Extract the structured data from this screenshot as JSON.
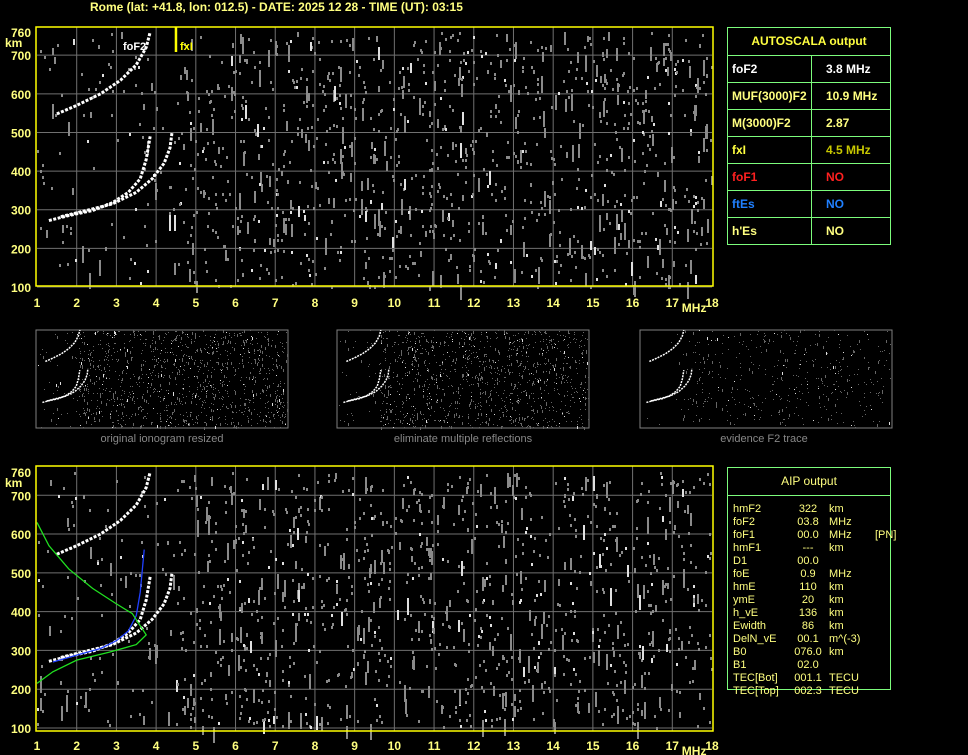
{
  "header": {
    "title": "Rome (lat: +41.8, lon: 012.5) - DATE: 2025 12 28 - TIME (UT): 03:15"
  },
  "colors": {
    "frame": "#ffff00",
    "text": "#ffff80",
    "table_border": "#7cfc7c",
    "grid": "#808080",
    "trace": "#ffffff",
    "foF1": "#ff2020",
    "ftEs": "#2080ff",
    "profile_green": "#20e020",
    "profile_blue": "#2040ff"
  },
  "chart_data": [
    {
      "type": "scatter",
      "title": "",
      "xlabel": "MHz",
      "ylabel": "km",
      "xlim": [
        1,
        18
      ],
      "ylim": [
        100,
        760
      ],
      "x_ticks": [
        "1",
        "2",
        "3",
        "4",
        "5",
        "6",
        "7",
        "8",
        "9",
        "10",
        "11",
        "12",
        "13",
        "14",
        "15",
        "16",
        "17",
        "18"
      ],
      "y_ticks": [
        "100",
        "200",
        "300",
        "400",
        "500",
        "600",
        "700",
        "760"
      ],
      "grid": true,
      "annotations": [
        {
          "label": "foF2",
          "x": 3.8
        },
        {
          "label": "fxI",
          "x": 4.5
        }
      ],
      "series": [
        {
          "x": [
            1.3,
            1.8,
            2.4,
            2.9,
            3.3,
            3.6,
            3.75,
            3.85
          ],
          "y": [
            272,
            285,
            298,
            318,
            345,
            380,
            430,
            490
          ]
        },
        {
          "x": [
            1.6,
            2.2,
            2.9,
            3.5,
            3.9,
            4.2,
            4.35,
            4.4
          ],
          "y": [
            282,
            297,
            315,
            345,
            380,
            420,
            460,
            500
          ]
        },
        {
          "x": [
            1.5,
            2.0,
            2.6,
            3.1,
            3.5,
            3.75,
            3.85
          ],
          "y": [
            548,
            570,
            600,
            635,
            675,
            720,
            760
          ]
        }
      ]
    },
    {
      "type": "scatter",
      "title": "",
      "xlabel": "MHz",
      "ylabel": "km",
      "xlim": [
        1,
        18
      ],
      "ylim": [
        100,
        760
      ],
      "x_ticks": [
        "1",
        "2",
        "3",
        "4",
        "5",
        "6",
        "7",
        "8",
        "9",
        "10",
        "11",
        "12",
        "13",
        "14",
        "15",
        "16",
        "17",
        "18"
      ],
      "y_ticks": [
        "100",
        "200",
        "300",
        "400",
        "500",
        "600",
        "700",
        "760"
      ],
      "grid": true,
      "series": [
        {
          "x": [
            1.3,
            1.8,
            2.4,
            2.9,
            3.3,
            3.6,
            3.75,
            3.85
          ],
          "y": [
            272,
            285,
            298,
            318,
            345,
            380,
            430,
            490
          ]
        },
        {
          "x": [
            1.6,
            2.2,
            2.9,
            3.5,
            3.9,
            4.2,
            4.35,
            4.4
          ],
          "y": [
            282,
            297,
            315,
            345,
            380,
            420,
            460,
            500
          ]
        },
        {
          "x": [
            1.5,
            2.0,
            2.6,
            3.1,
            3.5,
            3.75,
            3.85
          ],
          "y": [
            548,
            570,
            600,
            635,
            675,
            720,
            760
          ]
        },
        {
          "x": [
            1.4,
            2.0,
            2.6,
            3.0,
            3.3,
            3.5,
            3.6,
            3.7
          ],
          "y": [
            270,
            288,
            305,
            325,
            350,
            390,
            450,
            560
          ]
        },
        {
          "x": [
            1.0,
            1.3,
            1.8,
            2.4,
            3.0,
            3.4,
            3.75,
            3.5,
            2.8,
            2.0,
            1.4,
            1.0
          ],
          "y": [
            630,
            570,
            510,
            460,
            420,
            395,
            340,
            315,
            295,
            275,
            245,
            215
          ]
        }
      ]
    }
  ],
  "autoscala": {
    "title": "AUTOSCALA output",
    "rows": [
      {
        "key": "foF2",
        "value": "3.8 MHz",
        "color": "#ffffff",
        "vcolor": "#ffffff"
      },
      {
        "key": "MUF(3000)F2",
        "value": "10.9 MHz",
        "color": "#ffff80",
        "vcolor": "#ffff80"
      },
      {
        "key": "M(3000)F2",
        "value": "2.87",
        "color": "#ffff80",
        "vcolor": "#ffff80"
      },
      {
        "key": "fxI",
        "value": "4.5 MHz",
        "color": "#ffff40",
        "vcolor": "#c8c800"
      },
      {
        "key": "foF1",
        "value": "NO",
        "color": "#ff2020",
        "vcolor": "#ff2020"
      },
      {
        "key": "ftEs",
        "value": "NO",
        "color": "#2080ff",
        "vcolor": "#2080ff"
      },
      {
        "key": "h'Es",
        "value": "NO",
        "color": "#ffff80",
        "vcolor": "#ffff80"
      }
    ]
  },
  "thumbnails": [
    {
      "caption": "original ionogram resized"
    },
    {
      "caption": "eliminate multiple reflections"
    },
    {
      "caption": "evidence F2 trace"
    }
  ],
  "aip": {
    "title": "AIP output",
    "rows": [
      [
        "hmF2",
        "322",
        "km",
        ""
      ],
      [
        "foF2",
        "03.8",
        "MHz",
        ""
      ],
      [
        "foF1",
        "00.0",
        "MHz",
        "[PN]"
      ],
      [
        "hmF1",
        "---",
        "km",
        ""
      ],
      [
        "D1",
        "00.0",
        "",
        ""
      ],
      [
        "foE",
        "0.9",
        "MHz",
        ""
      ],
      [
        "hmE",
        "110",
        "km",
        ""
      ],
      [
        "ymE",
        "20",
        "km",
        ""
      ],
      [
        "h_vE",
        "136",
        "km",
        ""
      ],
      [
        "Ewidth",
        "86",
        "km",
        ""
      ],
      [
        "DelN_vE",
        "00.1",
        "m^(-3)",
        ""
      ],
      [
        "B0",
        "076.0",
        "km",
        ""
      ],
      [
        "B1",
        "02.0",
        "",
        ""
      ],
      [
        "TEC[Bot]",
        "001.1",
        "TECU",
        ""
      ],
      [
        "TEC[Top]",
        "002.3",
        "TECU",
        ""
      ]
    ]
  }
}
